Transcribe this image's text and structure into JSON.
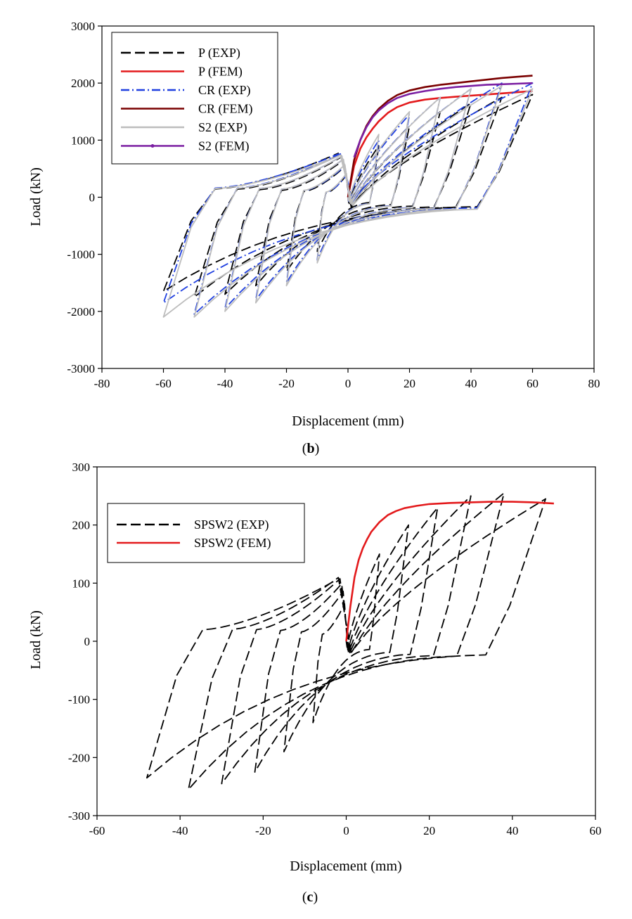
{
  "chart_data": [
    {
      "type": "line",
      "panel_label_open": "(",
      "panel_label_letter": "b",
      "panel_label_close": ")",
      "xlabel": "Displacement (mm)",
      "ylabel": "Load (kN)",
      "xlim": [
        -80,
        80
      ],
      "ylim": [
        -3000,
        3000
      ],
      "xticks": [
        "-80",
        "-60",
        "-40",
        "-20",
        "0",
        "20",
        "40",
        "60",
        "80"
      ],
      "yticks": [
        "-3000",
        "-2000",
        "-1000",
        "0",
        "1000",
        "2000",
        "3000"
      ],
      "legend_position": "top-left",
      "series": [
        {
          "name": "P (EXP)",
          "color": "#000000",
          "style": "dash",
          "cyclic": true,
          "amplitudes": [
            10,
            20,
            30,
            40,
            50,
            60
          ],
          "pos_peak": [
            900,
            1250,
            1500,
            1650,
            1750,
            1800
          ],
          "neg_peak": [
            -950,
            -1300,
            -1550,
            -1700,
            -1750,
            -1650
          ],
          "pinch": 0.35
        },
        {
          "name": "P (FEM)",
          "color": "#e31a1c",
          "style": "solid",
          "cyclic": false,
          "x": [
            0,
            2,
            4,
            6,
            8,
            10,
            13,
            16,
            20,
            25,
            30,
            35,
            40,
            45,
            50,
            55,
            60
          ],
          "y": [
            0,
            550,
            850,
            1050,
            1200,
            1330,
            1480,
            1580,
            1660,
            1710,
            1740,
            1760,
            1780,
            1800,
            1820,
            1840,
            1860
          ]
        },
        {
          "name": "CR (EXP)",
          "color": "#1f3fe0",
          "style": "dashdot",
          "cyclic": true,
          "amplitudes": [
            10,
            20,
            30,
            40,
            50,
            60
          ],
          "pos_peak": [
            1000,
            1450,
            1750,
            1900,
            2000,
            2000
          ],
          "neg_peak": [
            -1100,
            -1500,
            -1800,
            -1950,
            -2050,
            -1850
          ],
          "pinch": 0.3
        },
        {
          "name": "CR (FEM)",
          "color": "#7a0000",
          "style": "solid",
          "cyclic": false,
          "x": [
            0,
            2,
            4,
            6,
            8,
            10,
            13,
            16,
            20,
            25,
            30,
            35,
            40,
            45,
            50,
            55,
            60
          ],
          "y": [
            0,
            650,
            1000,
            1250,
            1420,
            1550,
            1690,
            1790,
            1870,
            1930,
            1970,
            2000,
            2030,
            2060,
            2090,
            2110,
            2130
          ]
        },
        {
          "name": "S2 (EXP)",
          "color": "#bdbdbd",
          "style": "solid",
          "cyclic": true,
          "amplitudes": [
            10,
            20,
            30,
            40,
            50,
            60
          ],
          "pos_peak": [
            1100,
            1500,
            1750,
            1900,
            1950,
            1900
          ],
          "neg_peak": [
            -1150,
            -1550,
            -1850,
            -2000,
            -2100,
            -2100
          ],
          "pinch": 0.3
        },
        {
          "name": "S2 (FEM)",
          "color": "#7b1fa2",
          "style": "solid",
          "cyclic": false,
          "x": [
            2,
            4,
            6,
            8,
            10,
            13,
            16,
            20,
            25,
            30,
            35,
            40,
            45,
            50,
            55,
            60
          ],
          "y": [
            700,
            1000,
            1230,
            1400,
            1520,
            1650,
            1740,
            1810,
            1860,
            1900,
            1930,
            1950,
            1970,
            1980,
            1990,
            2000
          ]
        }
      ]
    },
    {
      "type": "line",
      "panel_label_open": "(",
      "panel_label_letter": "c",
      "panel_label_close": ")",
      "xlabel": "Displacement (mm)",
      "ylabel": "Load (kN)",
      "xlim": [
        -60,
        60
      ],
      "ylim": [
        -300,
        300
      ],
      "xticks": [
        "-60",
        "-40",
        "-20",
        "0",
        "20",
        "40",
        "60"
      ],
      "yticks": [
        "-300",
        "-200",
        "-100",
        "0",
        "100",
        "200",
        "300"
      ],
      "legend_position": "top-left",
      "series": [
        {
          "name": "SPSW2 (EXP)",
          "color": "#000000",
          "style": "dash",
          "cyclic": true,
          "amplitudes": [
            8,
            15,
            22,
            30,
            38,
            48
          ],
          "pos_peak": [
            150,
            200,
            230,
            250,
            255,
            245
          ],
          "neg_peak": [
            -140,
            -190,
            -225,
            -245,
            -255,
            -235
          ],
          "pinch": 0.35
        },
        {
          "name": "SPSW2 (FEM)",
          "color": "#e31a1c",
          "style": "solid",
          "cyclic": false,
          "x": [
            0,
            1,
            2,
            3,
            4,
            5,
            6,
            8,
            10,
            12,
            14,
            17,
            20,
            25,
            30,
            35,
            40,
            45,
            50
          ],
          "y": [
            0,
            60,
            110,
            140,
            160,
            175,
            188,
            205,
            217,
            224,
            229,
            233,
            236,
            238,
            239,
            240,
            240,
            239,
            237
          ]
        }
      ]
    }
  ]
}
